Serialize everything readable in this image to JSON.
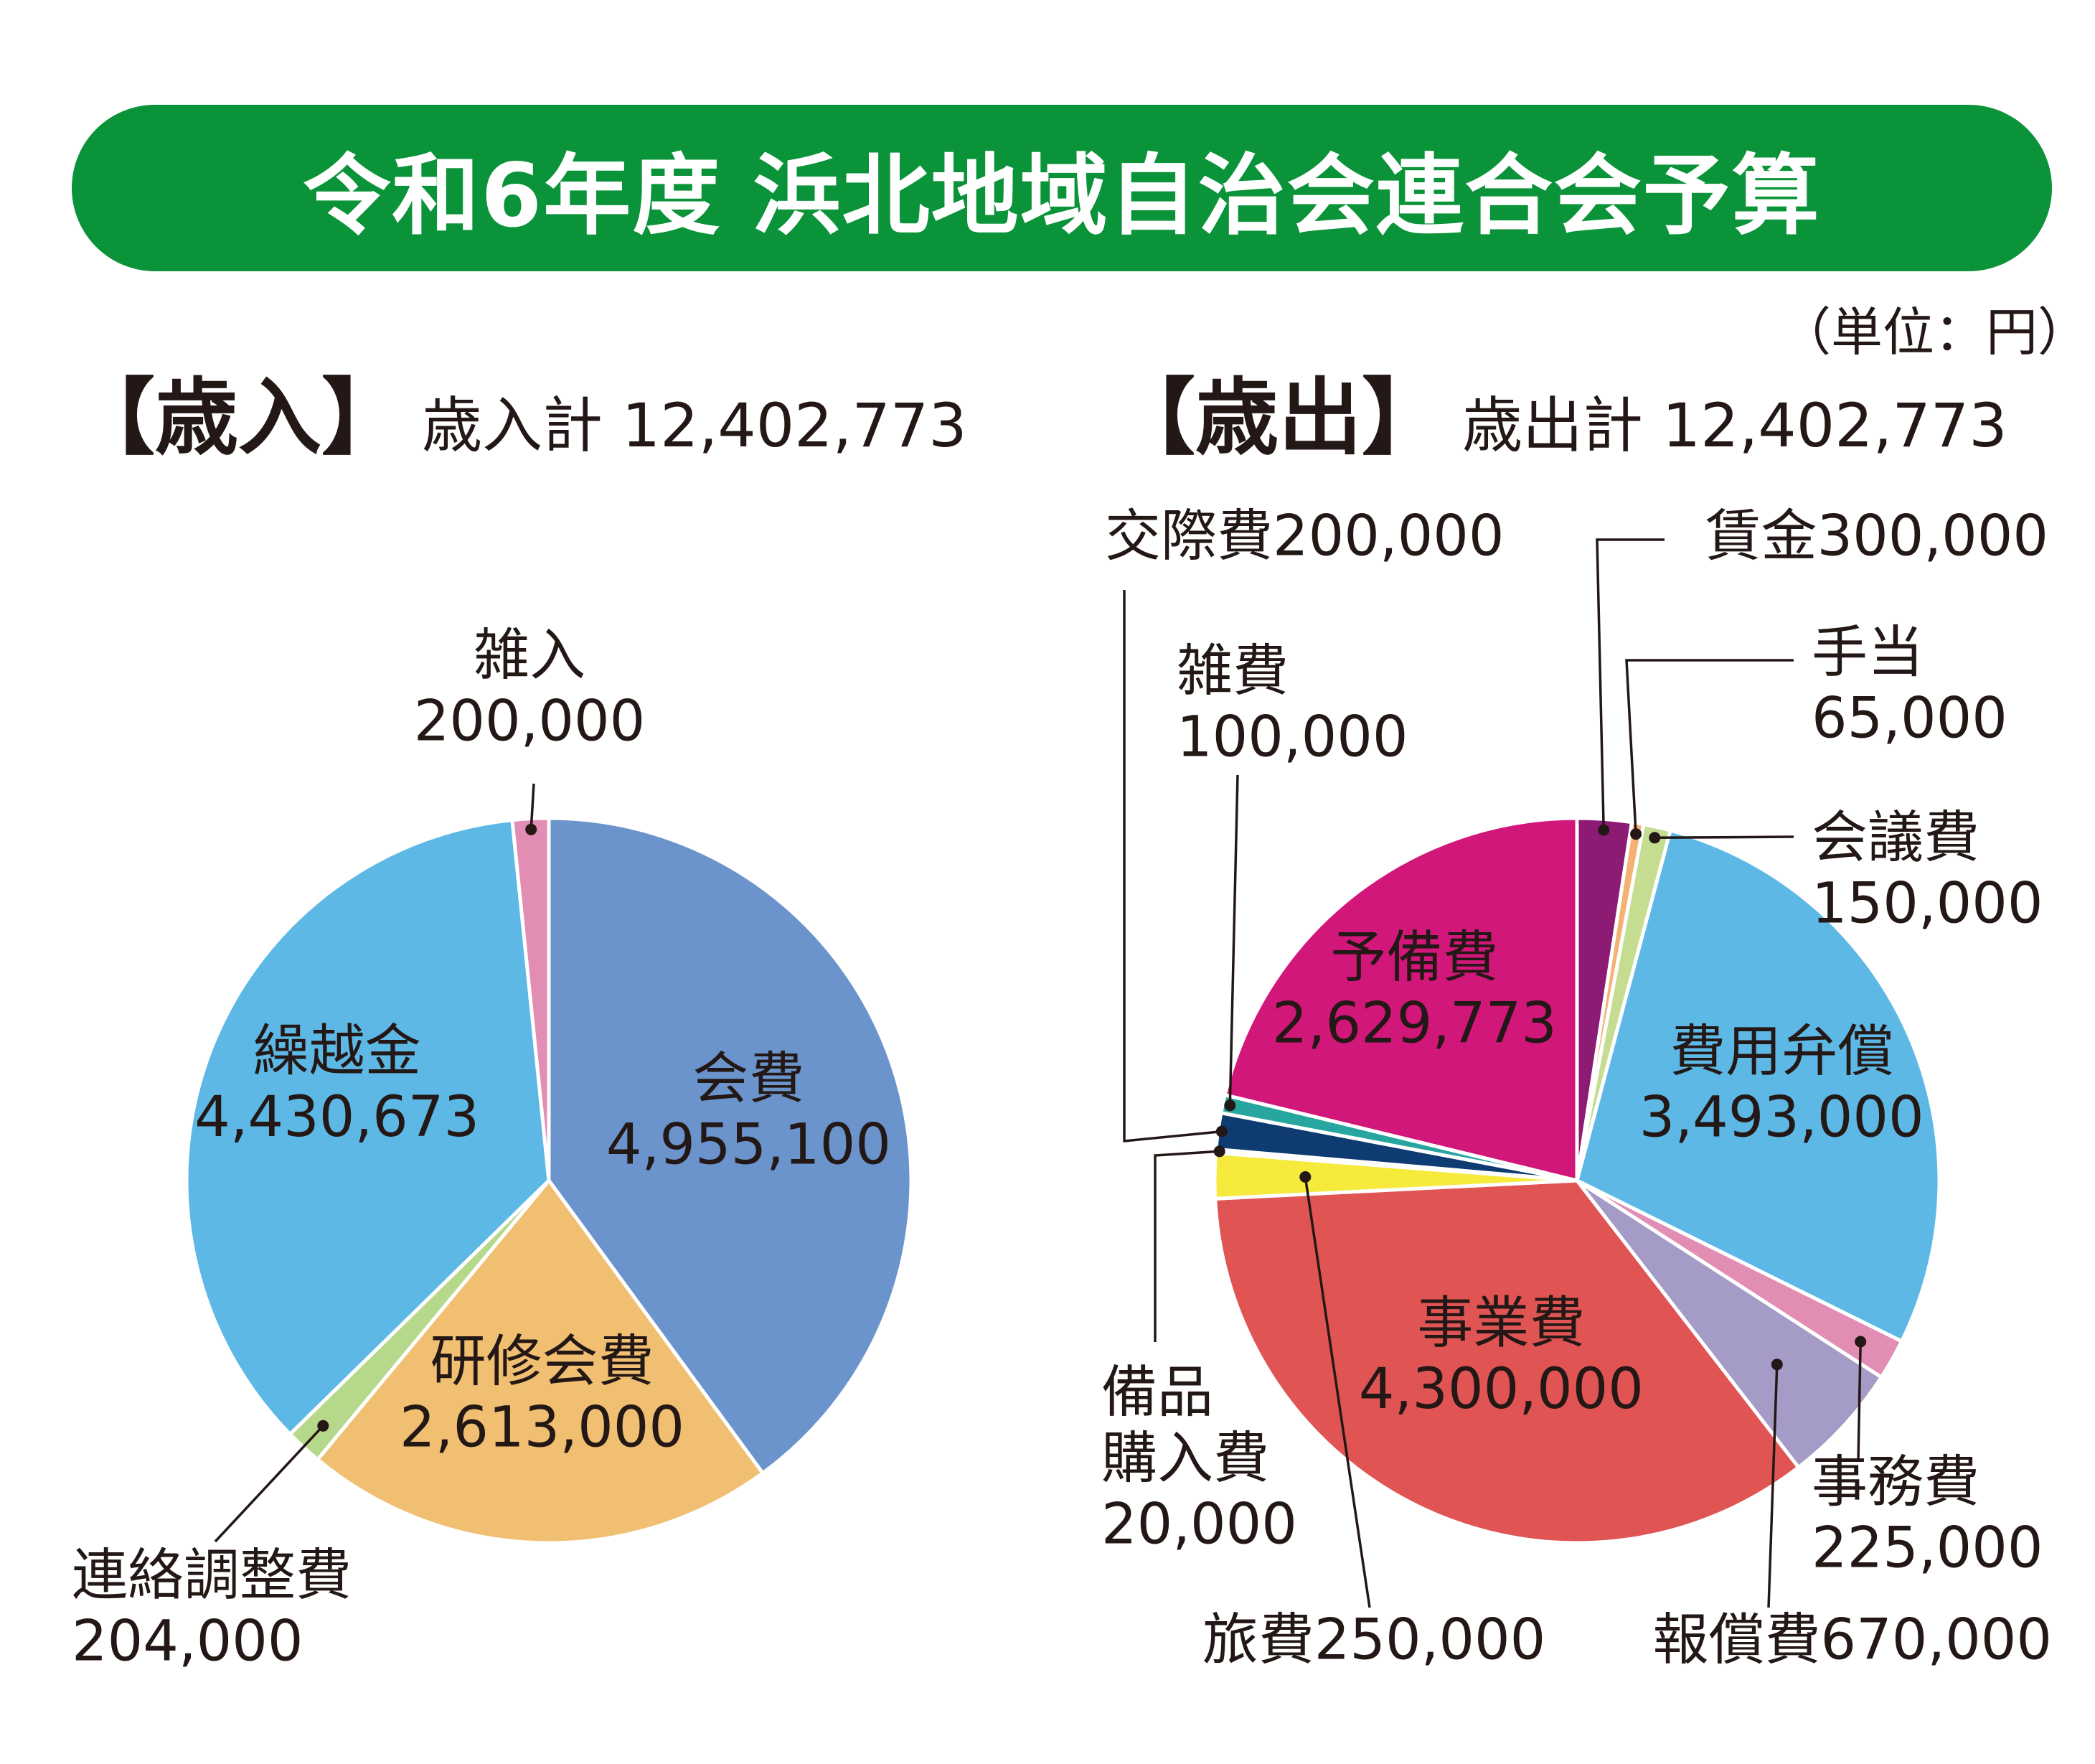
{
  "title": "令和6年度 浜北地域自治会連合会予算",
  "unit_label": "（単位：円）",
  "income": {
    "header": "【歳入】",
    "total_label": "歳入計 12,402,773"
  },
  "expense": {
    "header": "【歳出】",
    "total_label": "歳出計 12,402,773"
  },
  "colors": {
    "banner": "#0a9338",
    "会費": "#6a94cb",
    "研修会費": "#f1bf72",
    "連絡調整費": "#b6d88a",
    "繰越金": "#5db8e5",
    "雑入": "#e28db3",
    "賃金": "#8c1b73",
    "手当": "#f3b274",
    "会議費": "#c4dd91",
    "費用弁償": "#5db8e5",
    "事務費": "#e28db3",
    "報償費": "#a59bc7",
    "事業費": "#e05454",
    "旅費": "#f6ea3c",
    "備品購入費": "#1f2f6a",
    "交際費": "#0e3b72",
    "雑費": "#27a6a0",
    "予備費": "#d2177a"
  },
  "chart_data": [
    {
      "type": "pie",
      "title": "【歳入】",
      "subtitle": "歳入計 12,402,773",
      "slices": [
        {
          "name": "会費",
          "value": 4955100,
          "label_lines": [
            "会費",
            "4,955,100"
          ]
        },
        {
          "name": "研修会費",
          "value": 2613000,
          "label_lines": [
            "研修会費",
            "2,613,000"
          ]
        },
        {
          "name": "連絡調整費",
          "value": 204000,
          "label_lines": [
            "連絡調整費",
            "204,000"
          ]
        },
        {
          "name": "繰越金",
          "value": 4430673,
          "label_lines": [
            "繰越金",
            "4,430,673"
          ]
        },
        {
          "name": "雑入",
          "value": 200000,
          "label_lines": [
            "雑入",
            "200,000"
          ]
        }
      ]
    },
    {
      "type": "pie",
      "title": "【歳出】",
      "subtitle": "歳出計 12,402,773",
      "slices": [
        {
          "name": "賃金",
          "value": 300000,
          "label_lines": [
            "賃金300,000"
          ]
        },
        {
          "name": "手当",
          "value": 65000,
          "label_lines": [
            "手当",
            "65,000"
          ]
        },
        {
          "name": "会議費",
          "value": 150000,
          "label_lines": [
            "会議費",
            "150,000"
          ]
        },
        {
          "name": "費用弁償",
          "value": 3493000,
          "label_lines": [
            "費用弁償",
            "3,493,000"
          ]
        },
        {
          "name": "事務費",
          "value": 225000,
          "label_lines": [
            "事務費",
            "225,000"
          ]
        },
        {
          "name": "報償費",
          "value": 670000,
          "label_lines": [
            "報償費670,000"
          ]
        },
        {
          "name": "事業費",
          "value": 4300000,
          "label_lines": [
            "事業費",
            "4,300,000"
          ]
        },
        {
          "name": "旅費",
          "value": 250000,
          "label_lines": [
            "旅費250,000"
          ]
        },
        {
          "name": "備品購入費",
          "value": 20000,
          "label_lines": [
            "備品",
            "購入費",
            "20,000"
          ]
        },
        {
          "name": "交際費",
          "value": 200000,
          "label_lines": [
            "交際費200,000"
          ]
        },
        {
          "name": "雑費",
          "value": 100000,
          "label_lines": [
            "雑費",
            "100,000"
          ]
        },
        {
          "name": "予備費",
          "value": 2629773,
          "label_lines": [
            "予備費",
            "2,629,773"
          ]
        }
      ]
    }
  ]
}
